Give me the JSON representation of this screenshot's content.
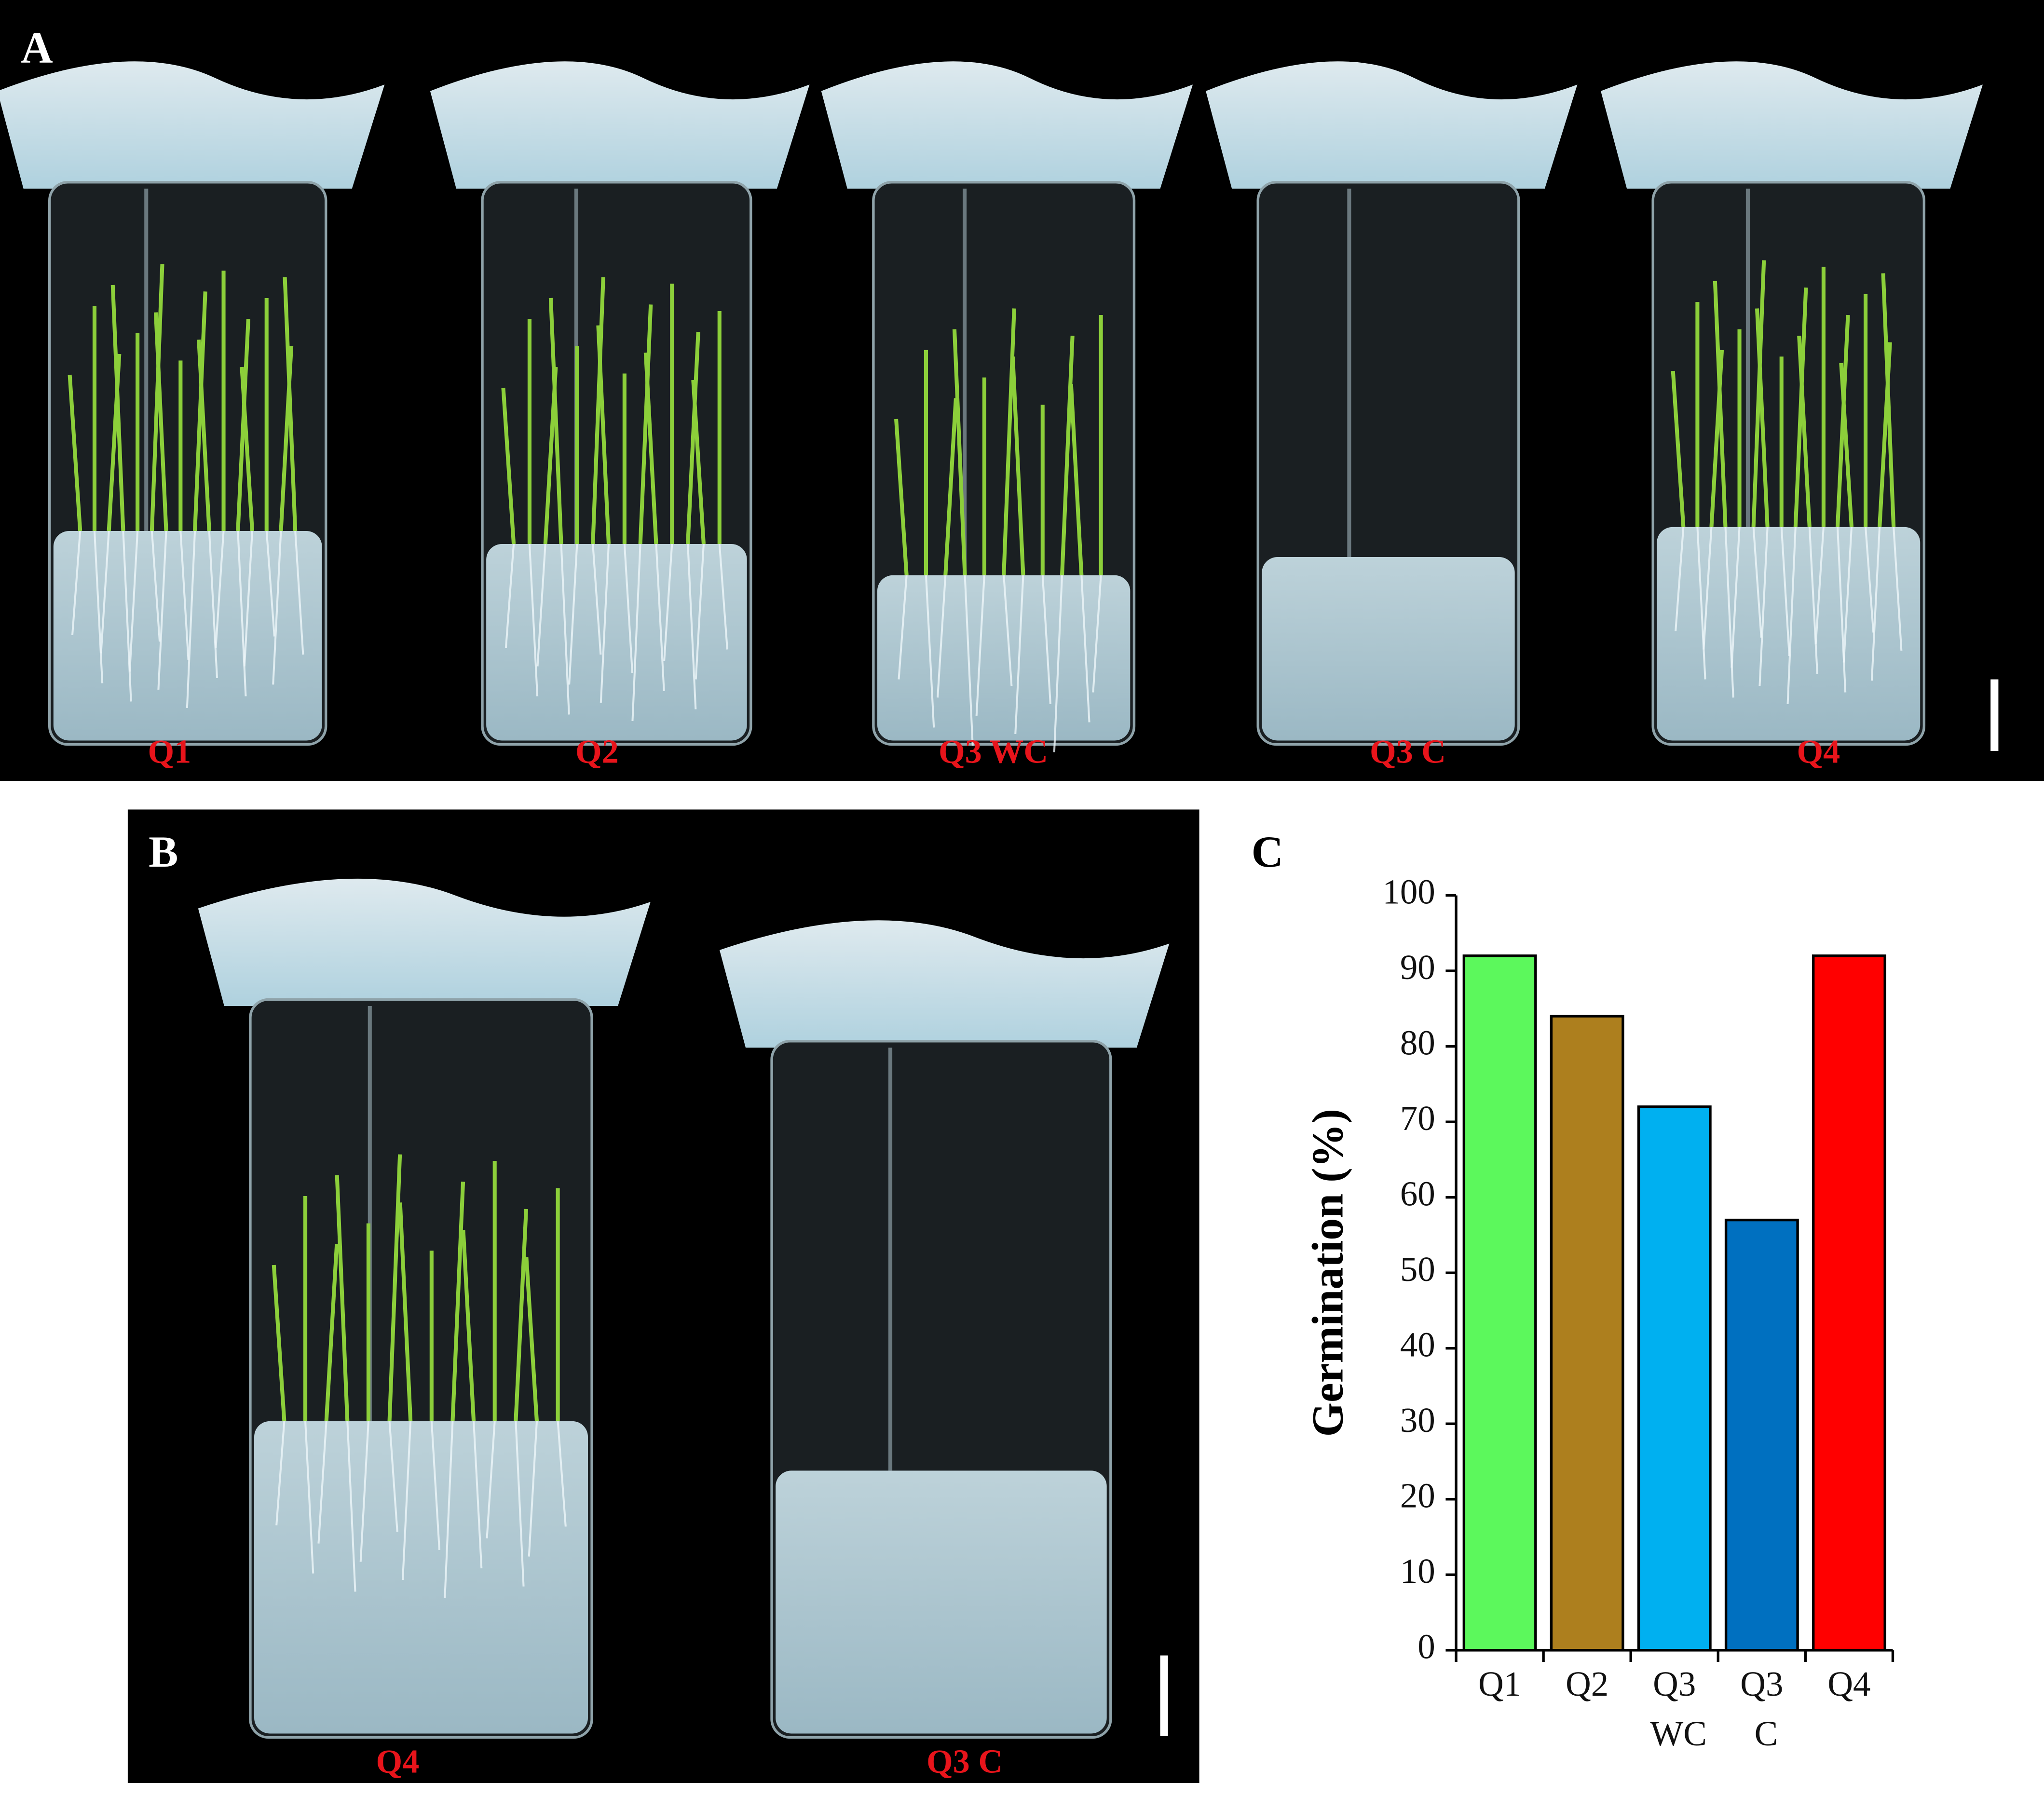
{
  "panel_a": {
    "label": "A",
    "tube_labels": [
      "Q1",
      "Q2",
      "Q3 WC",
      "Q3 C",
      "Q4"
    ]
  },
  "panel_b": {
    "label": "B",
    "tube_labels": [
      "Q4",
      "Q3 C"
    ]
  },
  "panel_c": {
    "label": "C"
  },
  "chart_data": {
    "type": "bar",
    "ylabel": "Germination (%)",
    "categories": [
      "Q1",
      "Q2",
      "Q3 WC",
      "Q3 C",
      "Q4"
    ],
    "values": [
      92,
      84,
      72,
      57,
      92
    ],
    "colors": [
      "#5cf85c",
      "#ad7f1e",
      "#00b0f0",
      "#0070c0",
      "#ff0000"
    ],
    "ylim": [
      0,
      100
    ],
    "yticks": [
      0,
      10,
      20,
      30,
      40,
      50,
      60,
      70,
      80,
      90,
      100
    ]
  }
}
